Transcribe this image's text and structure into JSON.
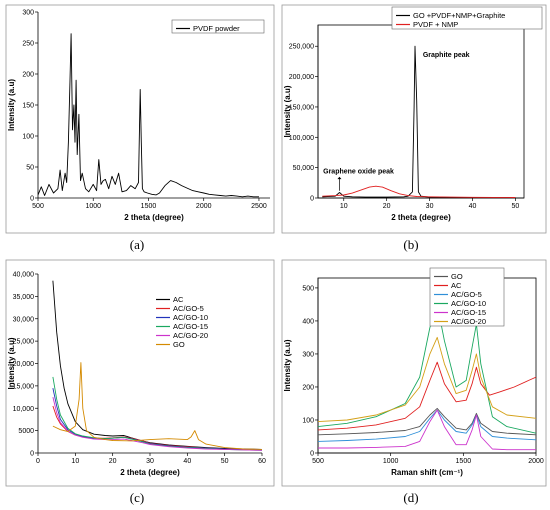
{
  "chart_data": [
    {
      "id": "a",
      "type": "line",
      "panel_label": "(a)",
      "xlabel": "2 theta (degree)",
      "ylabel": "Intensity (a.u)",
      "xlim": [
        500,
        2600
      ],
      "ylim": [
        0,
        300
      ],
      "xticks": [
        500,
        1000,
        1500,
        2000,
        2500
      ],
      "yticks": [
        0,
        50,
        100,
        150,
        200,
        250,
        300
      ],
      "legend_position": "top-right",
      "series": [
        {
          "name": "PVDF powder",
          "color": "#000000",
          "x": [
            500,
            530,
            560,
            600,
            640,
            680,
            700,
            720,
            745,
            760,
            775,
            790,
            800,
            812,
            825,
            835,
            845,
            855,
            870,
            885,
            900,
            930,
            960,
            1000,
            1030,
            1050,
            1070,
            1090,
            1110,
            1140,
            1170,
            1200,
            1230,
            1260,
            1300,
            1340,
            1380,
            1410,
            1425,
            1435,
            1445,
            1460,
            1490,
            1530,
            1570,
            1600,
            1650,
            1700,
            1750,
            1800,
            1850,
            1900,
            1950,
            2000,
            2050,
            2100,
            2150,
            2200,
            2250,
            2300,
            2350,
            2400,
            2450,
            2500
          ],
          "y": [
            5,
            18,
            4,
            22,
            8,
            15,
            45,
            12,
            40,
            25,
            90,
            190,
            265,
            110,
            150,
            90,
            190,
            70,
            135,
            28,
            40,
            15,
            10,
            22,
            12,
            62,
            22,
            28,
            30,
            15,
            35,
            22,
            40,
            10,
            12,
            20,
            15,
            25,
            175,
            90,
            15,
            10,
            8,
            6,
            5,
            8,
            20,
            28,
            25,
            20,
            16,
            12,
            10,
            8,
            6,
            5,
            4,
            3,
            4,
            3,
            2,
            3,
            2,
            2
          ]
        }
      ]
    },
    {
      "id": "b",
      "type": "line",
      "panel_label": "(b)",
      "xlabel": "2 theta (degree)",
      "ylabel": "Intensity (a.u)",
      "xlim": [
        4,
        52
      ],
      "ylim": [
        0,
        285000
      ],
      "xticks": [
        10,
        20,
        30,
        40,
        50
      ],
      "yticks": [
        0,
        50000,
        100000,
        150000,
        200000,
        250000
      ],
      "ytick_labels": [
        "0",
        "50,000",
        "100,000",
        "150,000",
        "200,000",
        "250,000"
      ],
      "legend_position": "top-right",
      "annotations": [
        "Graphite peak",
        "Graphene oxide peak"
      ],
      "series": [
        {
          "name": "GO +PVDF+NMP+Graphite",
          "color": "#000000",
          "x": [
            5,
            8,
            9,
            10,
            12,
            15,
            20,
            24,
            25,
            26,
            26.4,
            26.6,
            27,
            27.4,
            28,
            30,
            35,
            40,
            45,
            50
          ],
          "y": [
            2000,
            3000,
            9000,
            3000,
            2000,
            1500,
            1500,
            2000,
            3000,
            10000,
            150000,
            250000,
            160000,
            10000,
            3000,
            1500,
            1000,
            1000,
            800,
            800
          ]
        },
        {
          "name": "PVDF + NMP",
          "color": "#e02020",
          "x": [
            5,
            8,
            10,
            12,
            14,
            16,
            17.5,
            19,
            21,
            23,
            25,
            27,
            30,
            35,
            40,
            45,
            50
          ],
          "y": [
            3000,
            4000,
            5000,
            8000,
            13000,
            18000,
            19500,
            18000,
            12000,
            7000,
            4000,
            2500,
            2000,
            1500,
            1200,
            1000,
            900
          ]
        }
      ]
    },
    {
      "id": "c",
      "type": "line",
      "panel_label": "(c)",
      "xlabel": "2 theta (degree)",
      "ylabel": "Intensity (a.u)",
      "xlim": [
        0,
        60
      ],
      "ylim": [
        0,
        40000
      ],
      "xticks": [
        0,
        10,
        20,
        30,
        40,
        50,
        60
      ],
      "yticks": [
        0,
        5000,
        10000,
        15000,
        20000,
        25000,
        30000,
        35000,
        40000
      ],
      "ytick_labels": [
        "0",
        "5000",
        "10,000",
        "15,000",
        "20,000",
        "25,000",
        "30,000",
        "35,000",
        "40,000"
      ],
      "legend_position": "center-right",
      "series": [
        {
          "name": "AC",
          "color": "#000000",
          "x": [
            4,
            5,
            6,
            7,
            8,
            10,
            12,
            15,
            18,
            20,
            23,
            25,
            28,
            30,
            35,
            40,
            45,
            50,
            55,
            60
          ],
          "y": [
            38500,
            27000,
            19500,
            14500,
            11000,
            7000,
            5200,
            4200,
            3900,
            3800,
            3900,
            3400,
            2700,
            2300,
            1800,
            1500,
            1200,
            1000,
            900,
            800
          ]
        },
        {
          "name": "AC/GO-5",
          "color": "#e02020",
          "x": [
            4,
            5,
            6,
            8,
            10,
            12,
            15,
            18,
            20,
            23,
            25,
            28,
            30,
            35,
            40,
            45,
            50,
            55,
            60
          ],
          "y": [
            10500,
            8000,
            6500,
            4800,
            4000,
            3600,
            3300,
            3300,
            3400,
            3600,
            3300,
            2700,
            2200,
            1700,
            1400,
            1100,
            900,
            800,
            700
          ]
        },
        {
          "name": "AC/GO-10",
          "color": "#2233bb",
          "x": [
            4,
            5,
            6,
            8,
            10,
            12,
            15,
            18,
            20,
            23,
            25,
            28,
            30,
            35,
            40,
            45,
            50,
            55,
            60
          ],
          "y": [
            14500,
            10500,
            7500,
            5200,
            4200,
            3700,
            3300,
            3200,
            3300,
            3500,
            3200,
            2600,
            2100,
            1600,
            1300,
            1100,
            900,
            800,
            700
          ]
        },
        {
          "name": "AC/GO-15",
          "color": "#1aa860",
          "x": [
            4,
            5,
            6,
            8,
            10,
            12,
            15,
            18,
            20,
            23,
            25,
            28,
            30,
            35,
            40,
            45,
            50,
            55,
            60
          ],
          "y": [
            17000,
            12000,
            8500,
            5500,
            4300,
            3800,
            3400,
            3200,
            3300,
            3500,
            3100,
            2500,
            2000,
            1500,
            1200,
            1000,
            800,
            700,
            600
          ]
        },
        {
          "name": "AC/GO-20",
          "color": "#cc33cc",
          "x": [
            4,
            5,
            6,
            8,
            10,
            12,
            15,
            18,
            20,
            23,
            25,
            28,
            30,
            35,
            40,
            45,
            50,
            55,
            60
          ],
          "y": [
            12500,
            9000,
            6800,
            4900,
            4000,
            3500,
            3100,
            3000,
            3000,
            3100,
            2800,
            2300,
            1900,
            1400,
            1100,
            900,
            800,
            700,
            600
          ]
        },
        {
          "name": "GO",
          "color": "#d48a00",
          "x": [
            4,
            6,
            8,
            10,
            11,
            11.5,
            12,
            13,
            15,
            18,
            20,
            25,
            30,
            35,
            40,
            41,
            42,
            43,
            45,
            50,
            55,
            60
          ],
          "y": [
            6000,
            5200,
            4800,
            6000,
            12000,
            20200,
            10000,
            5000,
            3500,
            3000,
            2800,
            2700,
            3000,
            3200,
            3000,
            3600,
            5000,
            3000,
            2000,
            1200,
            900,
            800
          ]
        }
      ]
    },
    {
      "id": "d",
      "type": "line",
      "panel_label": "(d)",
      "xlabel": "Raman shift (cm⁻¹)",
      "ylabel": "Intensity (a.u)",
      "xlim": [
        500,
        2000
      ],
      "ylim": [
        0,
        530
      ],
      "xticks": [
        500,
        1000,
        1500,
        2000
      ],
      "yticks": [
        0,
        100,
        200,
        300,
        400,
        500
      ],
      "legend_position": "top-right",
      "series": [
        {
          "name": "GO",
          "color": "#555555",
          "x": [
            500,
            700,
            900,
            1100,
            1200,
            1270,
            1320,
            1370,
            1450,
            1520,
            1560,
            1590,
            1620,
            1700,
            1800,
            2000
          ],
          "y": [
            55,
            58,
            62,
            68,
            80,
            115,
            135,
            110,
            75,
            70,
            90,
            120,
            90,
            65,
            60,
            55
          ]
        },
        {
          "name": "AC",
          "color": "#e02020",
          "x": [
            500,
            700,
            900,
            1100,
            1200,
            1270,
            1320,
            1370,
            1450,
            1520,
            1560,
            1590,
            1620,
            1680,
            1750,
            1850,
            1950,
            2000
          ],
          "y": [
            70,
            75,
            85,
            105,
            140,
            220,
            275,
            210,
            155,
            160,
            210,
            260,
            210,
            175,
            185,
            200,
            220,
            230
          ]
        },
        {
          "name": "AC/GO-5",
          "color": "#2f8fd8",
          "x": [
            500,
            700,
            900,
            1100,
            1200,
            1270,
            1320,
            1370,
            1450,
            1520,
            1560,
            1590,
            1620,
            1700,
            1800,
            2000
          ],
          "y": [
            35,
            38,
            42,
            50,
            65,
            105,
            130,
            100,
            65,
            60,
            85,
            115,
            80,
            50,
            45,
            40
          ]
        },
        {
          "name": "AC/GO-10",
          "color": "#1aa860",
          "x": [
            500,
            700,
            900,
            1100,
            1200,
            1270,
            1320,
            1370,
            1450,
            1520,
            1560,
            1590,
            1620,
            1700,
            1800,
            2000
          ],
          "y": [
            80,
            90,
            110,
            150,
            230,
            380,
            450,
            340,
            200,
            220,
            320,
            390,
            270,
            110,
            80,
            60
          ]
        },
        {
          "name": "AC/GO-15",
          "color": "#cc33cc",
          "x": [
            500,
            700,
            900,
            1100,
            1200,
            1270,
            1320,
            1370,
            1450,
            1520,
            1560,
            1590,
            1620,
            1700,
            1800,
            2000
          ],
          "y": [
            15,
            15,
            17,
            20,
            35,
            95,
            130,
            80,
            25,
            25,
            70,
            115,
            50,
            12,
            10,
            10
          ]
        },
        {
          "name": "AC/GO-20",
          "color": "#d4a017",
          "x": [
            500,
            700,
            900,
            1100,
            1200,
            1270,
            1320,
            1370,
            1450,
            1520,
            1560,
            1590,
            1620,
            1700,
            1800,
            2000
          ],
          "y": [
            95,
            100,
            115,
            145,
            200,
            300,
            350,
            270,
            180,
            190,
            250,
            300,
            230,
            140,
            115,
            105
          ]
        }
      ]
    }
  ]
}
